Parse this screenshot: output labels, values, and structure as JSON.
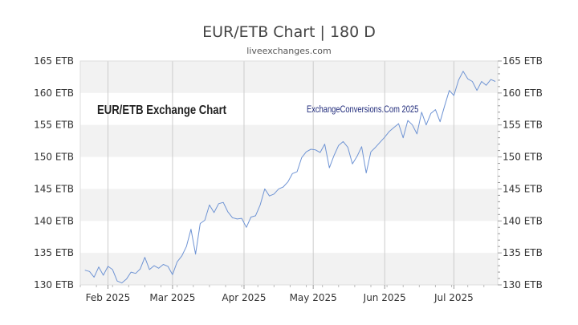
{
  "chart_data": {
    "type": "line",
    "title": "EUR/ETB Chart | 180 D",
    "subtitle": "liveexchanges.com",
    "watermark_left": "EUR/ETB Exchange Chart",
    "watermark_right": "ExchangeConversions.Com 2025",
    "ylim": [
      130,
      165
    ],
    "y_ticks": [
      130,
      135,
      140,
      145,
      150,
      155,
      160,
      165
    ],
    "y_tick_labels": [
      "130 ETB",
      "135 ETB",
      "140 ETB",
      "145 ETB",
      "150 ETB",
      "155 ETB",
      "160 ETB",
      "165 ETB"
    ],
    "x_start": "2025-01-20",
    "x_end": "2025-07-20",
    "month_ticks": [
      {
        "date": "2025-02-01",
        "label": "Feb 2025"
      },
      {
        "date": "2025-03-01",
        "label": "Mar 2025"
      },
      {
        "date": "2025-04-01",
        "label": "Apr 2025"
      },
      {
        "date": "2025-05-01",
        "label": "May 2025"
      },
      {
        "date": "2025-06-01",
        "label": "Jun 2025"
      },
      {
        "date": "2025-07-01",
        "label": "Jul 2025"
      }
    ],
    "grid": true,
    "line_color": "#6f94d4",
    "series": [
      {
        "values": [
          [
            "2025-01-22",
            132.3
          ],
          [
            "2025-01-24",
            132.1
          ],
          [
            "2025-01-26",
            131.2
          ],
          [
            "2025-01-28",
            132.8
          ],
          [
            "2025-01-30",
            131.5
          ],
          [
            "2025-02-01",
            132.9
          ],
          [
            "2025-02-03",
            132.4
          ],
          [
            "2025-02-05",
            130.6
          ],
          [
            "2025-02-07",
            130.3
          ],
          [
            "2025-02-09",
            130.9
          ],
          [
            "2025-02-11",
            132.0
          ],
          [
            "2025-02-13",
            131.8
          ],
          [
            "2025-02-15",
            132.5
          ],
          [
            "2025-02-17",
            134.3
          ],
          [
            "2025-02-19",
            132.4
          ],
          [
            "2025-02-21",
            133.0
          ],
          [
            "2025-02-23",
            132.6
          ],
          [
            "2025-02-25",
            133.2
          ],
          [
            "2025-02-27",
            132.9
          ],
          [
            "2025-03-01",
            131.6
          ],
          [
            "2025-03-03",
            133.6
          ],
          [
            "2025-03-05",
            134.5
          ],
          [
            "2025-03-07",
            136.0
          ],
          [
            "2025-03-09",
            138.7
          ],
          [
            "2025-03-11",
            134.8
          ],
          [
            "2025-03-13",
            139.6
          ],
          [
            "2025-03-15",
            140.1
          ],
          [
            "2025-03-17",
            142.5
          ],
          [
            "2025-03-19",
            141.3
          ],
          [
            "2025-03-21",
            142.7
          ],
          [
            "2025-03-23",
            142.9
          ],
          [
            "2025-03-25",
            141.4
          ],
          [
            "2025-03-27",
            140.5
          ],
          [
            "2025-03-29",
            140.3
          ],
          [
            "2025-03-31",
            140.4
          ],
          [
            "2025-04-02",
            139.0
          ],
          [
            "2025-04-04",
            140.6
          ],
          [
            "2025-04-06",
            140.8
          ],
          [
            "2025-04-08",
            142.5
          ],
          [
            "2025-04-10",
            145.0
          ],
          [
            "2025-04-12",
            143.9
          ],
          [
            "2025-04-14",
            144.2
          ],
          [
            "2025-04-16",
            145.0
          ],
          [
            "2025-04-18",
            145.3
          ],
          [
            "2025-04-20",
            146.1
          ],
          [
            "2025-04-22",
            147.4
          ],
          [
            "2025-04-24",
            147.7
          ],
          [
            "2025-04-26",
            149.9
          ],
          [
            "2025-04-28",
            150.8
          ],
          [
            "2025-04-30",
            151.2
          ],
          [
            "2025-05-02",
            151.1
          ],
          [
            "2025-05-04",
            150.7
          ],
          [
            "2025-05-06",
            152.0
          ],
          [
            "2025-05-08",
            148.3
          ],
          [
            "2025-05-10",
            150.2
          ],
          [
            "2025-05-12",
            151.8
          ],
          [
            "2025-05-14",
            152.4
          ],
          [
            "2025-05-16",
            151.5
          ],
          [
            "2025-05-18",
            148.9
          ],
          [
            "2025-05-20",
            150.1
          ],
          [
            "2025-05-22",
            151.6
          ],
          [
            "2025-05-24",
            147.5
          ],
          [
            "2025-05-26",
            150.8
          ],
          [
            "2025-05-28",
            151.5
          ],
          [
            "2025-05-30",
            152.3
          ],
          [
            "2025-06-01",
            153.1
          ],
          [
            "2025-06-03",
            154.0
          ],
          [
            "2025-06-05",
            154.6
          ],
          [
            "2025-06-07",
            155.2
          ],
          [
            "2025-06-09",
            153.0
          ],
          [
            "2025-06-11",
            155.7
          ],
          [
            "2025-06-13",
            155.0
          ],
          [
            "2025-06-15",
            153.6
          ],
          [
            "2025-06-17",
            157.0
          ],
          [
            "2025-06-19",
            155.0
          ],
          [
            "2025-06-21",
            156.8
          ],
          [
            "2025-06-23",
            157.4
          ],
          [
            "2025-06-25",
            155.5
          ],
          [
            "2025-06-27",
            158.0
          ],
          [
            "2025-06-29",
            160.4
          ],
          [
            "2025-07-01",
            159.6
          ],
          [
            "2025-07-03",
            162.0
          ],
          [
            "2025-07-05",
            163.4
          ],
          [
            "2025-07-07",
            162.2
          ],
          [
            "2025-07-09",
            161.8
          ],
          [
            "2025-07-11",
            160.4
          ],
          [
            "2025-07-13",
            161.8
          ],
          [
            "2025-07-15",
            161.2
          ],
          [
            "2025-07-17",
            162.1
          ],
          [
            "2025-07-19",
            161.8
          ]
        ]
      }
    ]
  }
}
